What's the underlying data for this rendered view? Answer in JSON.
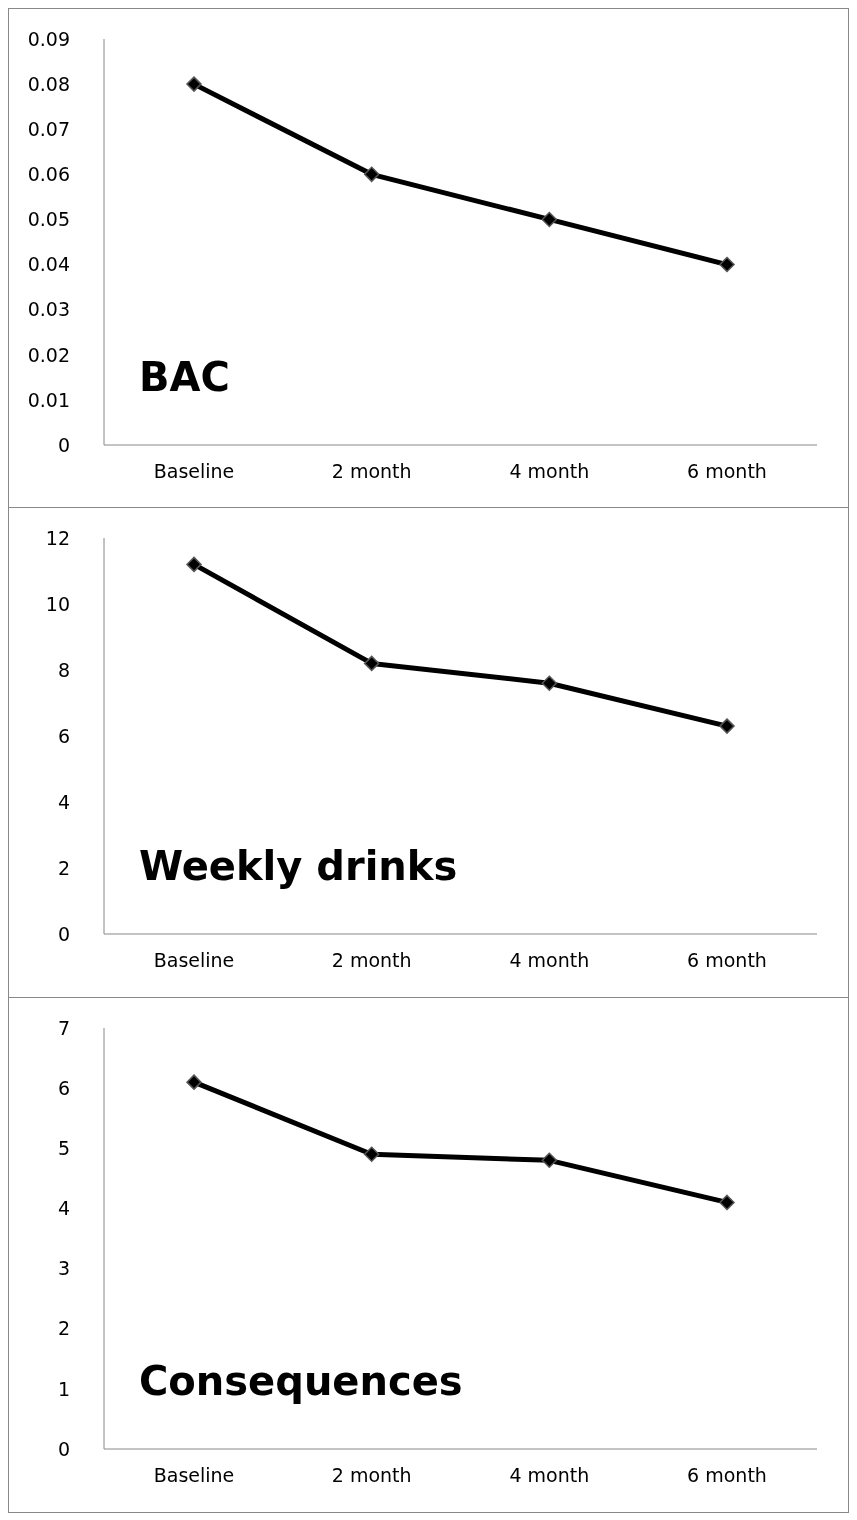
{
  "chart_data": [
    {
      "type": "line",
      "title": "BAC",
      "categories": [
        "Baseline",
        "2 month",
        "4 month",
        "6 month"
      ],
      "series": [
        {
          "color": "#000000",
          "values": [
            0.08,
            0.06,
            0.05,
            0.04
          ]
        }
      ],
      "ylim": [
        0,
        0.09
      ],
      "yticks": [
        0,
        0.01,
        0.02,
        0.03,
        0.04,
        0.05,
        0.06,
        0.07,
        0.08,
        0.09
      ],
      "grid": false,
      "legend": false,
      "marker": "diamond",
      "line_style": "solid"
    },
    {
      "type": "line",
      "title": "Weekly drinks",
      "categories": [
        "Baseline",
        "2 month",
        "4 month",
        "6 month"
      ],
      "series": [
        {
          "color": "#000000",
          "values": [
            11.2,
            8.2,
            7.6,
            6.3
          ]
        }
      ],
      "ylim": [
        0,
        12
      ],
      "yticks": [
        0,
        2,
        4,
        6,
        8,
        10,
        12
      ],
      "grid": false,
      "legend": false,
      "marker": "diamond",
      "line_style": "solid"
    },
    {
      "type": "line",
      "title": "Consequences",
      "categories": [
        "Baseline",
        "2 month",
        "4 month",
        "6 month"
      ],
      "series": [
        {
          "color": "#000000",
          "values": [
            6.1,
            4.9,
            4.8,
            4.1
          ]
        }
      ],
      "ylim": [
        0,
        7
      ],
      "yticks": [
        0,
        1,
        2,
        3,
        4,
        5,
        6,
        7
      ],
      "grid": false,
      "legend": false,
      "marker": "diamond",
      "line_style": "solid"
    }
  ]
}
